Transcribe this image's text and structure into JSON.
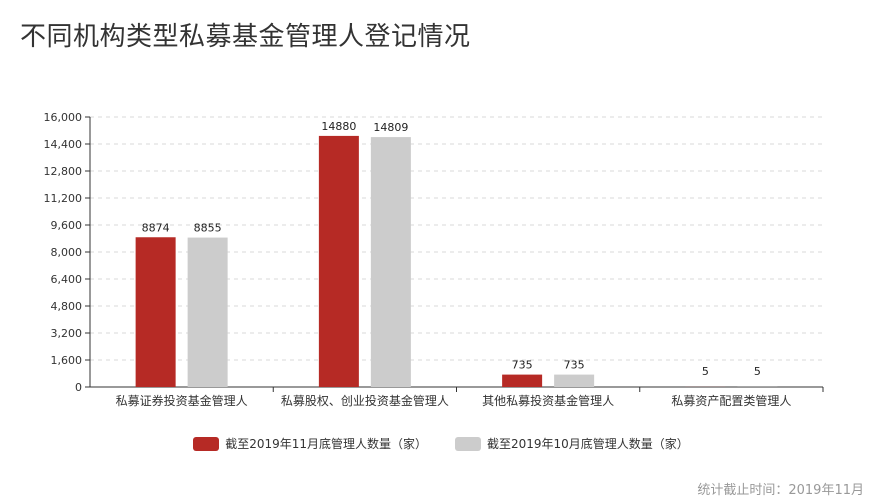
{
  "title": "不同机构类型私募基金管理人登记情况",
  "footnote": "统计截止时间：2019年11月",
  "chart_data": {
    "type": "bar",
    "title": "不同机构类型私募基金管理人登记情况",
    "categories": [
      "私募证券投资基金管理人",
      "私募股权、创业投资基金管理人",
      "其他私募投资基金管理人",
      "私募资产配置类管理人"
    ],
    "series": [
      {
        "name": "截至2019年11月底管理人数量（家）",
        "values": [
          8874,
          14880,
          735,
          5
        ],
        "color": "#b62a25"
      },
      {
        "name": "截至2019年10月底管理人数量（家）",
        "values": [
          8855,
          14809,
          735,
          5
        ],
        "color": "#cccccc"
      }
    ],
    "ylim": [
      0,
      16000
    ],
    "yticks": [
      0,
      1600,
      3200,
      4800,
      6400,
      8000,
      9600,
      11200,
      12800,
      14400,
      16000
    ],
    "ytick_labels": [
      "0",
      "1,600",
      "3,200",
      "4,800",
      "6,400",
      "8,000",
      "9,600",
      "11,200",
      "12,800",
      "14,400",
      "16,000"
    ],
    "grid": true,
    "legend": "bottom-center"
  }
}
